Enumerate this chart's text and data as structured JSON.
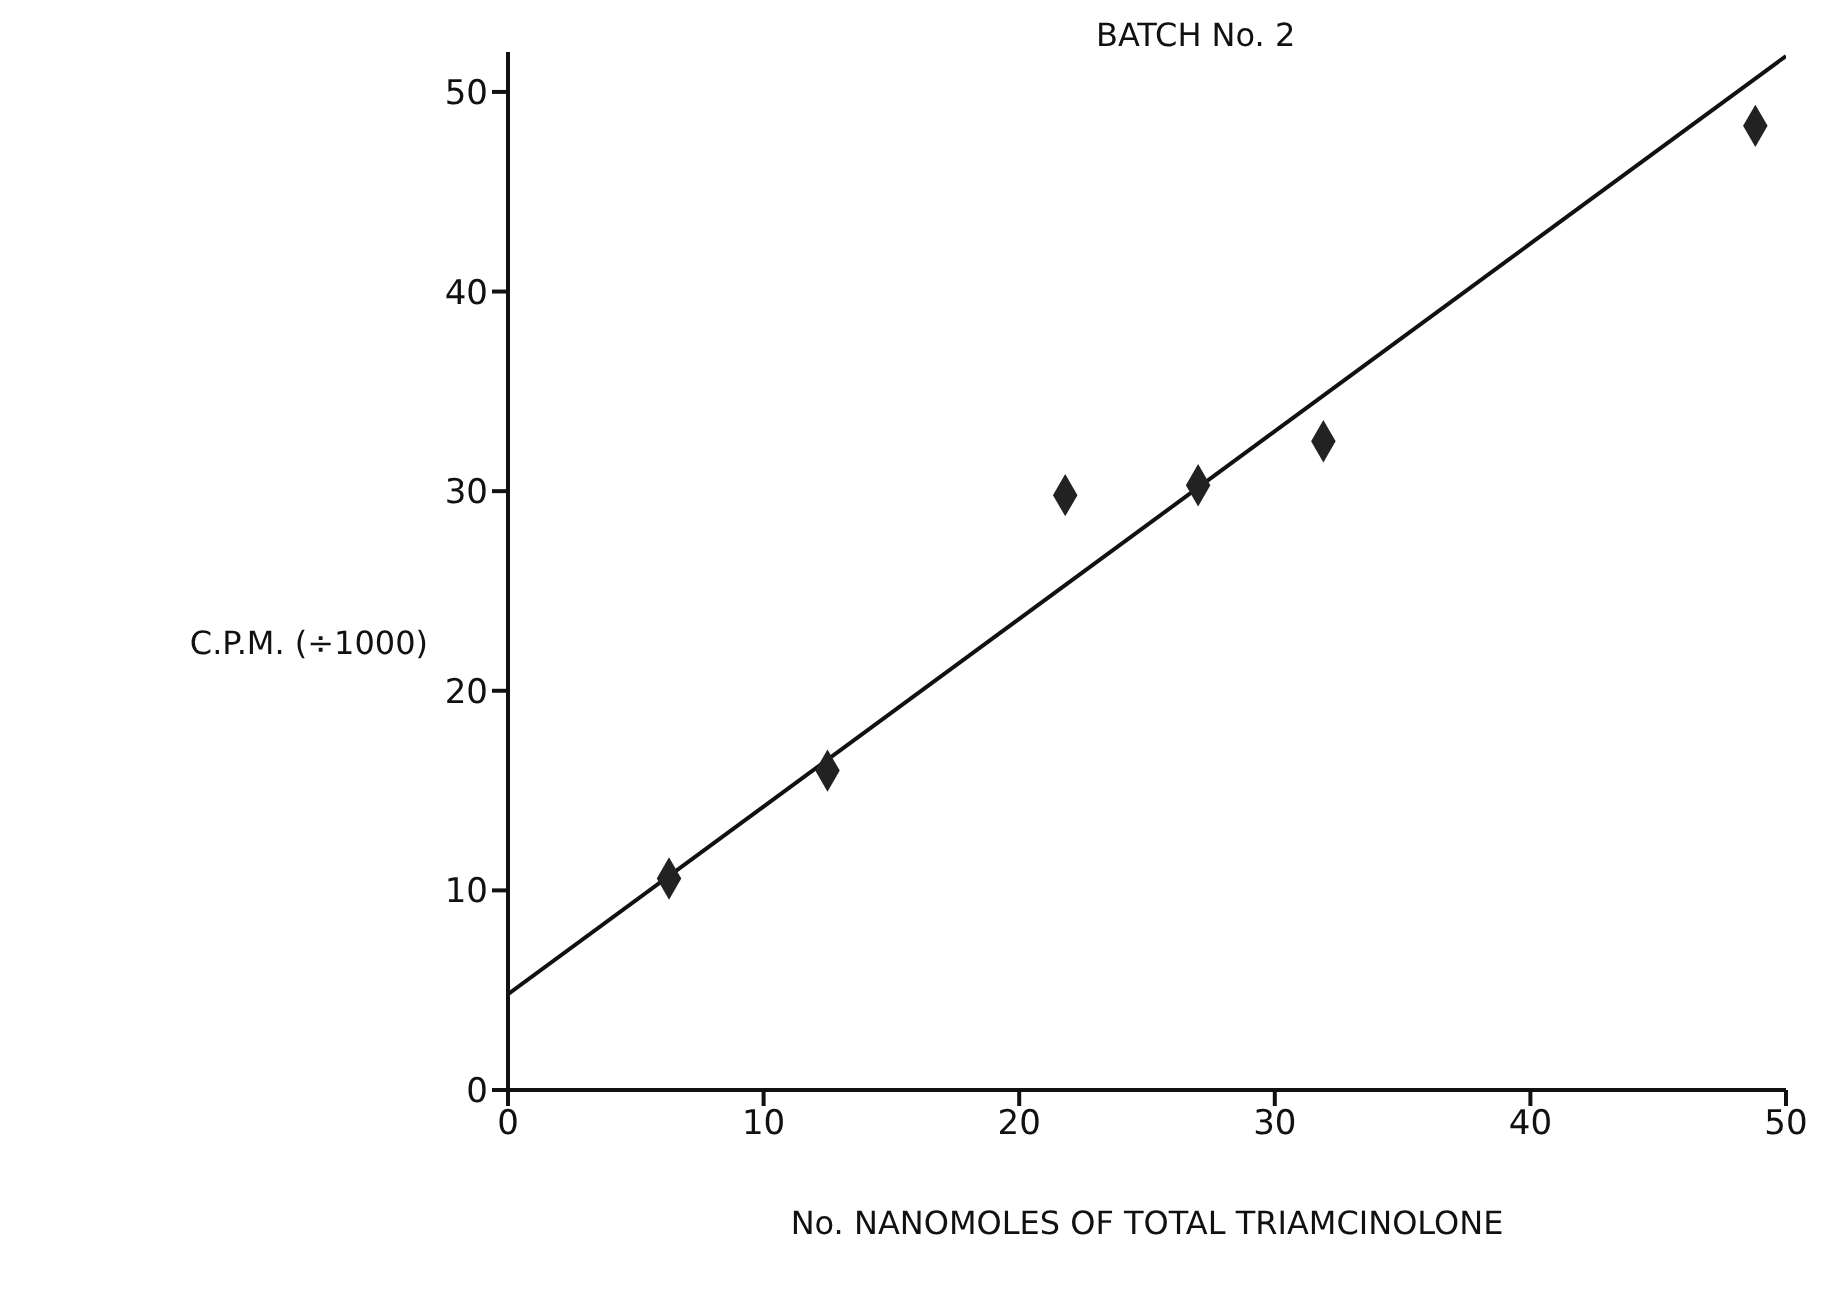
{
  "chart_data": {
    "type": "scatter",
    "title": "BATCH No. 2",
    "xlabel": "No. NANOMOLES OF TOTAL TRIAMCINOLONE",
    "ylabel": "C.P.M. (÷1000)",
    "xlim": [
      0,
      50
    ],
    "ylim": [
      0,
      52
    ],
    "xticks": [
      0,
      10,
      20,
      30,
      40,
      50
    ],
    "yticks": [
      0,
      10,
      20,
      30,
      40,
      50
    ],
    "series": [
      {
        "marker": "diamond",
        "color": "#222222",
        "x": [
          6.3,
          12.5,
          21.8,
          27.0,
          31.9,
          48.8
        ],
        "values": [
          10.6,
          16.0,
          29.8,
          30.3,
          32.5,
          48.3
        ]
      },
      {
        "type": "line",
        "marker": "none",
        "color": "#111111",
        "x": [
          0,
          50
        ],
        "values": [
          4.8,
          51.8
        ]
      }
    ]
  }
}
